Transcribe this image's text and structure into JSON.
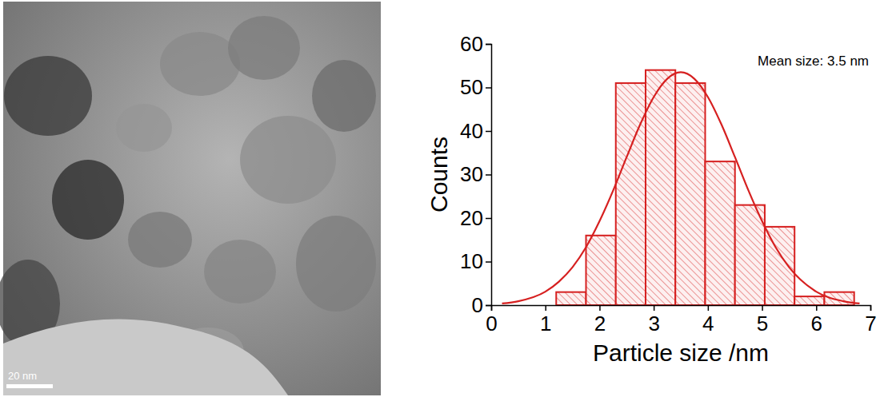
{
  "micrograph": {
    "scale_bar_label": "20 nm"
  },
  "chart_data": {
    "type": "histogram",
    "x_label": "Particle size /nm",
    "y_label": "Counts",
    "annotation": "Mean size: 3.5 nm",
    "bins": [
      1.2,
      1.75,
      2.3,
      2.85,
      3.4,
      3.95,
      4.5,
      5.05,
      5.6,
      6.15,
      6.7
    ],
    "values": [
      3,
      16,
      51,
      54,
      51,
      33,
      23,
      18,
      2,
      3
    ],
    "color": "#d62020",
    "xlim": [
      0,
      7
    ],
    "xticks": [
      0,
      1,
      2,
      3,
      4,
      5,
      6,
      7
    ],
    "ylim": [
      0,
      60
    ],
    "yticks": [
      0,
      10,
      20,
      30,
      40,
      50,
      60
    ],
    "series": [
      {
        "type": "line",
        "color": "#d62020",
        "x": [
          0.2,
          0.5,
          1.0,
          1.25,
          1.5,
          1.75,
          2.0,
          2.25,
          2.5,
          2.75,
          3.0,
          3.25,
          3.5,
          3.75,
          4.0,
          4.25,
          4.5,
          4.75,
          5.0,
          5.25,
          5.5,
          6.0,
          6.5,
          6.8
        ],
        "values": [
          0.38,
          0.9,
          3.1,
          5.4,
          8.7,
          13.3,
          19.3,
          26.3,
          34.0,
          41.5,
          47.8,
          52.0,
          53.5,
          52.0,
          47.8,
          41.5,
          34.0,
          26.3,
          19.3,
          13.3,
          8.7,
          3.1,
          0.9,
          0.38
        ]
      }
    ]
  }
}
